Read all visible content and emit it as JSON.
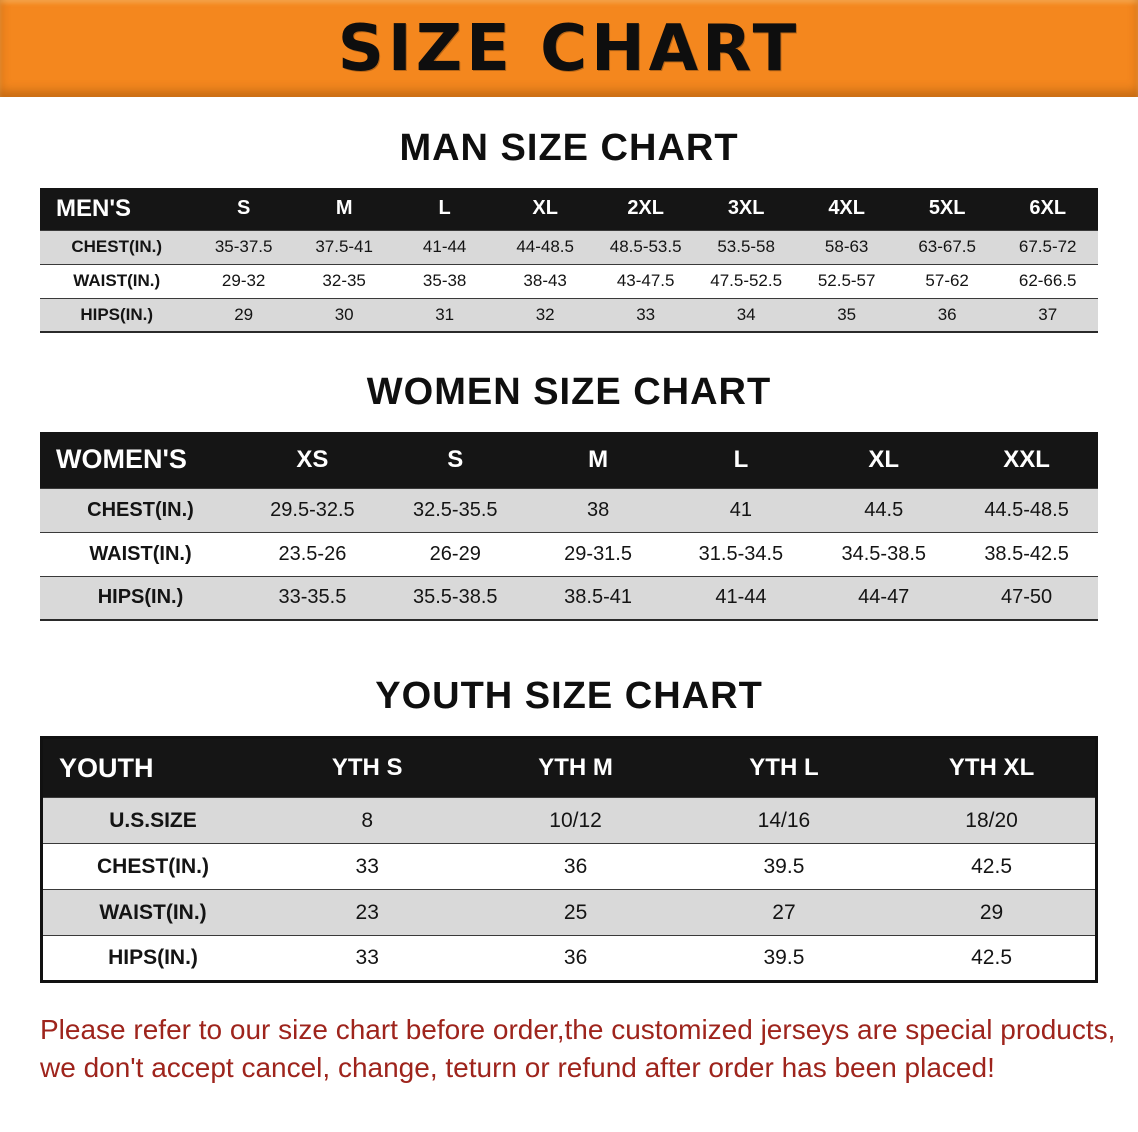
{
  "banner": {
    "title": "SIZE CHART"
  },
  "colors": {
    "banner_bg": "#F4871E",
    "header_bg": "#151515",
    "row_alt": "#D9D9D9",
    "note_red": "#9E241C"
  },
  "chart_data": [
    {
      "type": "table",
      "title": "MAN SIZE CHART",
      "columns": [
        "MEN'S",
        "S",
        "M",
        "L",
        "XL",
        "2XL",
        "3XL",
        "4XL",
        "5XL",
        "6XL"
      ],
      "rows": [
        [
          "CHEST(IN.)",
          "35-37.5",
          "37.5-41",
          "41-44",
          "44-48.5",
          "48.5-53.5",
          "53.5-58",
          "58-63",
          "63-67.5",
          "67.5-72"
        ],
        [
          "WAIST(IN.)",
          "29-32",
          "32-35",
          "35-38",
          "38-43",
          "43-47.5",
          "47.5-52.5",
          "52.5-57",
          "57-62",
          "62-66.5"
        ],
        [
          "HIPS(IN.)",
          "29",
          "30",
          "31",
          "32",
          "33",
          "34",
          "35",
          "36",
          "37"
        ]
      ]
    },
    {
      "type": "table",
      "title": "WOMEN SIZE CHART",
      "columns": [
        "WOMEN'S",
        "XS",
        "S",
        "M",
        "L",
        "XL",
        "XXL"
      ],
      "rows": [
        [
          "CHEST(IN.)",
          "29.5-32.5",
          "32.5-35.5",
          "38",
          "41",
          "44.5",
          "44.5-48.5"
        ],
        [
          "WAIST(IN.)",
          "23.5-26",
          "26-29",
          "29-31.5",
          "31.5-34.5",
          "34.5-38.5",
          "38.5-42.5"
        ],
        [
          "HIPS(IN.)",
          "33-35.5",
          "35.5-38.5",
          "38.5-41",
          "41-44",
          "44-47",
          "47-50"
        ]
      ]
    },
    {
      "type": "table",
      "title": "YOUTH SIZE CHART",
      "columns": [
        "YOUTH",
        "YTH S",
        "YTH M",
        "YTH L",
        "YTH XL"
      ],
      "rows": [
        [
          "U.S.SIZE",
          "8",
          "10/12",
          "14/16",
          "18/20"
        ],
        [
          "CHEST(IN.)",
          "33",
          "36",
          "39.5",
          "42.5"
        ],
        [
          "WAIST(IN.)",
          "23",
          "25",
          "27",
          "29"
        ],
        [
          "HIPS(IN.)",
          "33",
          "36",
          "39.5",
          "42.5"
        ]
      ]
    }
  ],
  "footer_note": {
    "line1": "Please refer to our size chart before order,the customized jerseys are special products,",
    "line2": "we don't accept cancel, change, teturn or refund after order has been placed!"
  }
}
